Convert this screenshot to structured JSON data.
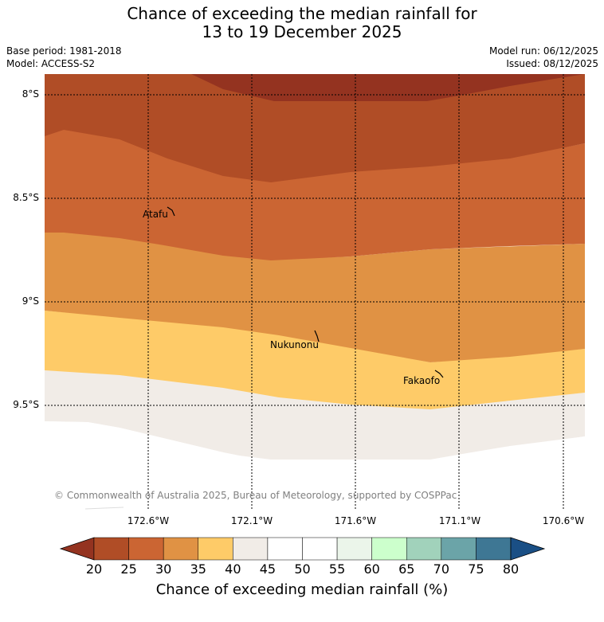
{
  "title_line1": "Chance of exceeding the median rainfall for",
  "title_line2": "13 to 19 December 2025",
  "meta": {
    "base_period": "Base period: 1981-2018",
    "model": "Model: ACCESS-S2",
    "model_run": "Model run: 06/12/2025",
    "issued": "Issued: 08/12/2025"
  },
  "axes": {
    "lat_labels": [
      "8°S",
      "8.5°S",
      "9°S",
      "9.5°S"
    ],
    "lon_labels": [
      "172.6°W",
      "172.1°W",
      "171.6°W",
      "171.1°W",
      "170.6°W"
    ]
  },
  "places": [
    {
      "name": "Atafu"
    },
    {
      "name": "Nukunonu"
    },
    {
      "name": "Fakaofo"
    }
  ],
  "credit": "© Commonwealth of Australia 2025, Bureau of Meteorology, supported by COSPPac",
  "colorbar": {
    "label": "Chance of exceeding median rainfall (%)",
    "ticks": [
      "20",
      "25",
      "30",
      "35",
      "40",
      "45",
      "50",
      "55",
      "60",
      "65",
      "70",
      "75",
      "80"
    ],
    "colors": [
      "#b04d26",
      "#cb6533",
      "#e09244",
      "#fecb68",
      "#f1ece7",
      "#ffffff",
      "#ffffff",
      "#ebf5ea",
      "#ccffcc",
      "#a1d2bb",
      "#6ba4a8",
      "#3e7794"
    ],
    "under_color": "#943320",
    "over_color": "#1a4f85"
  },
  "map_colors": {
    "c15": "#943320",
    "c20": "#b04d26",
    "c25": "#cb6533",
    "c30": "#e09244",
    "c35": "#fecb68",
    "c40": "#f1ece7",
    "land": "#ffffff"
  }
}
